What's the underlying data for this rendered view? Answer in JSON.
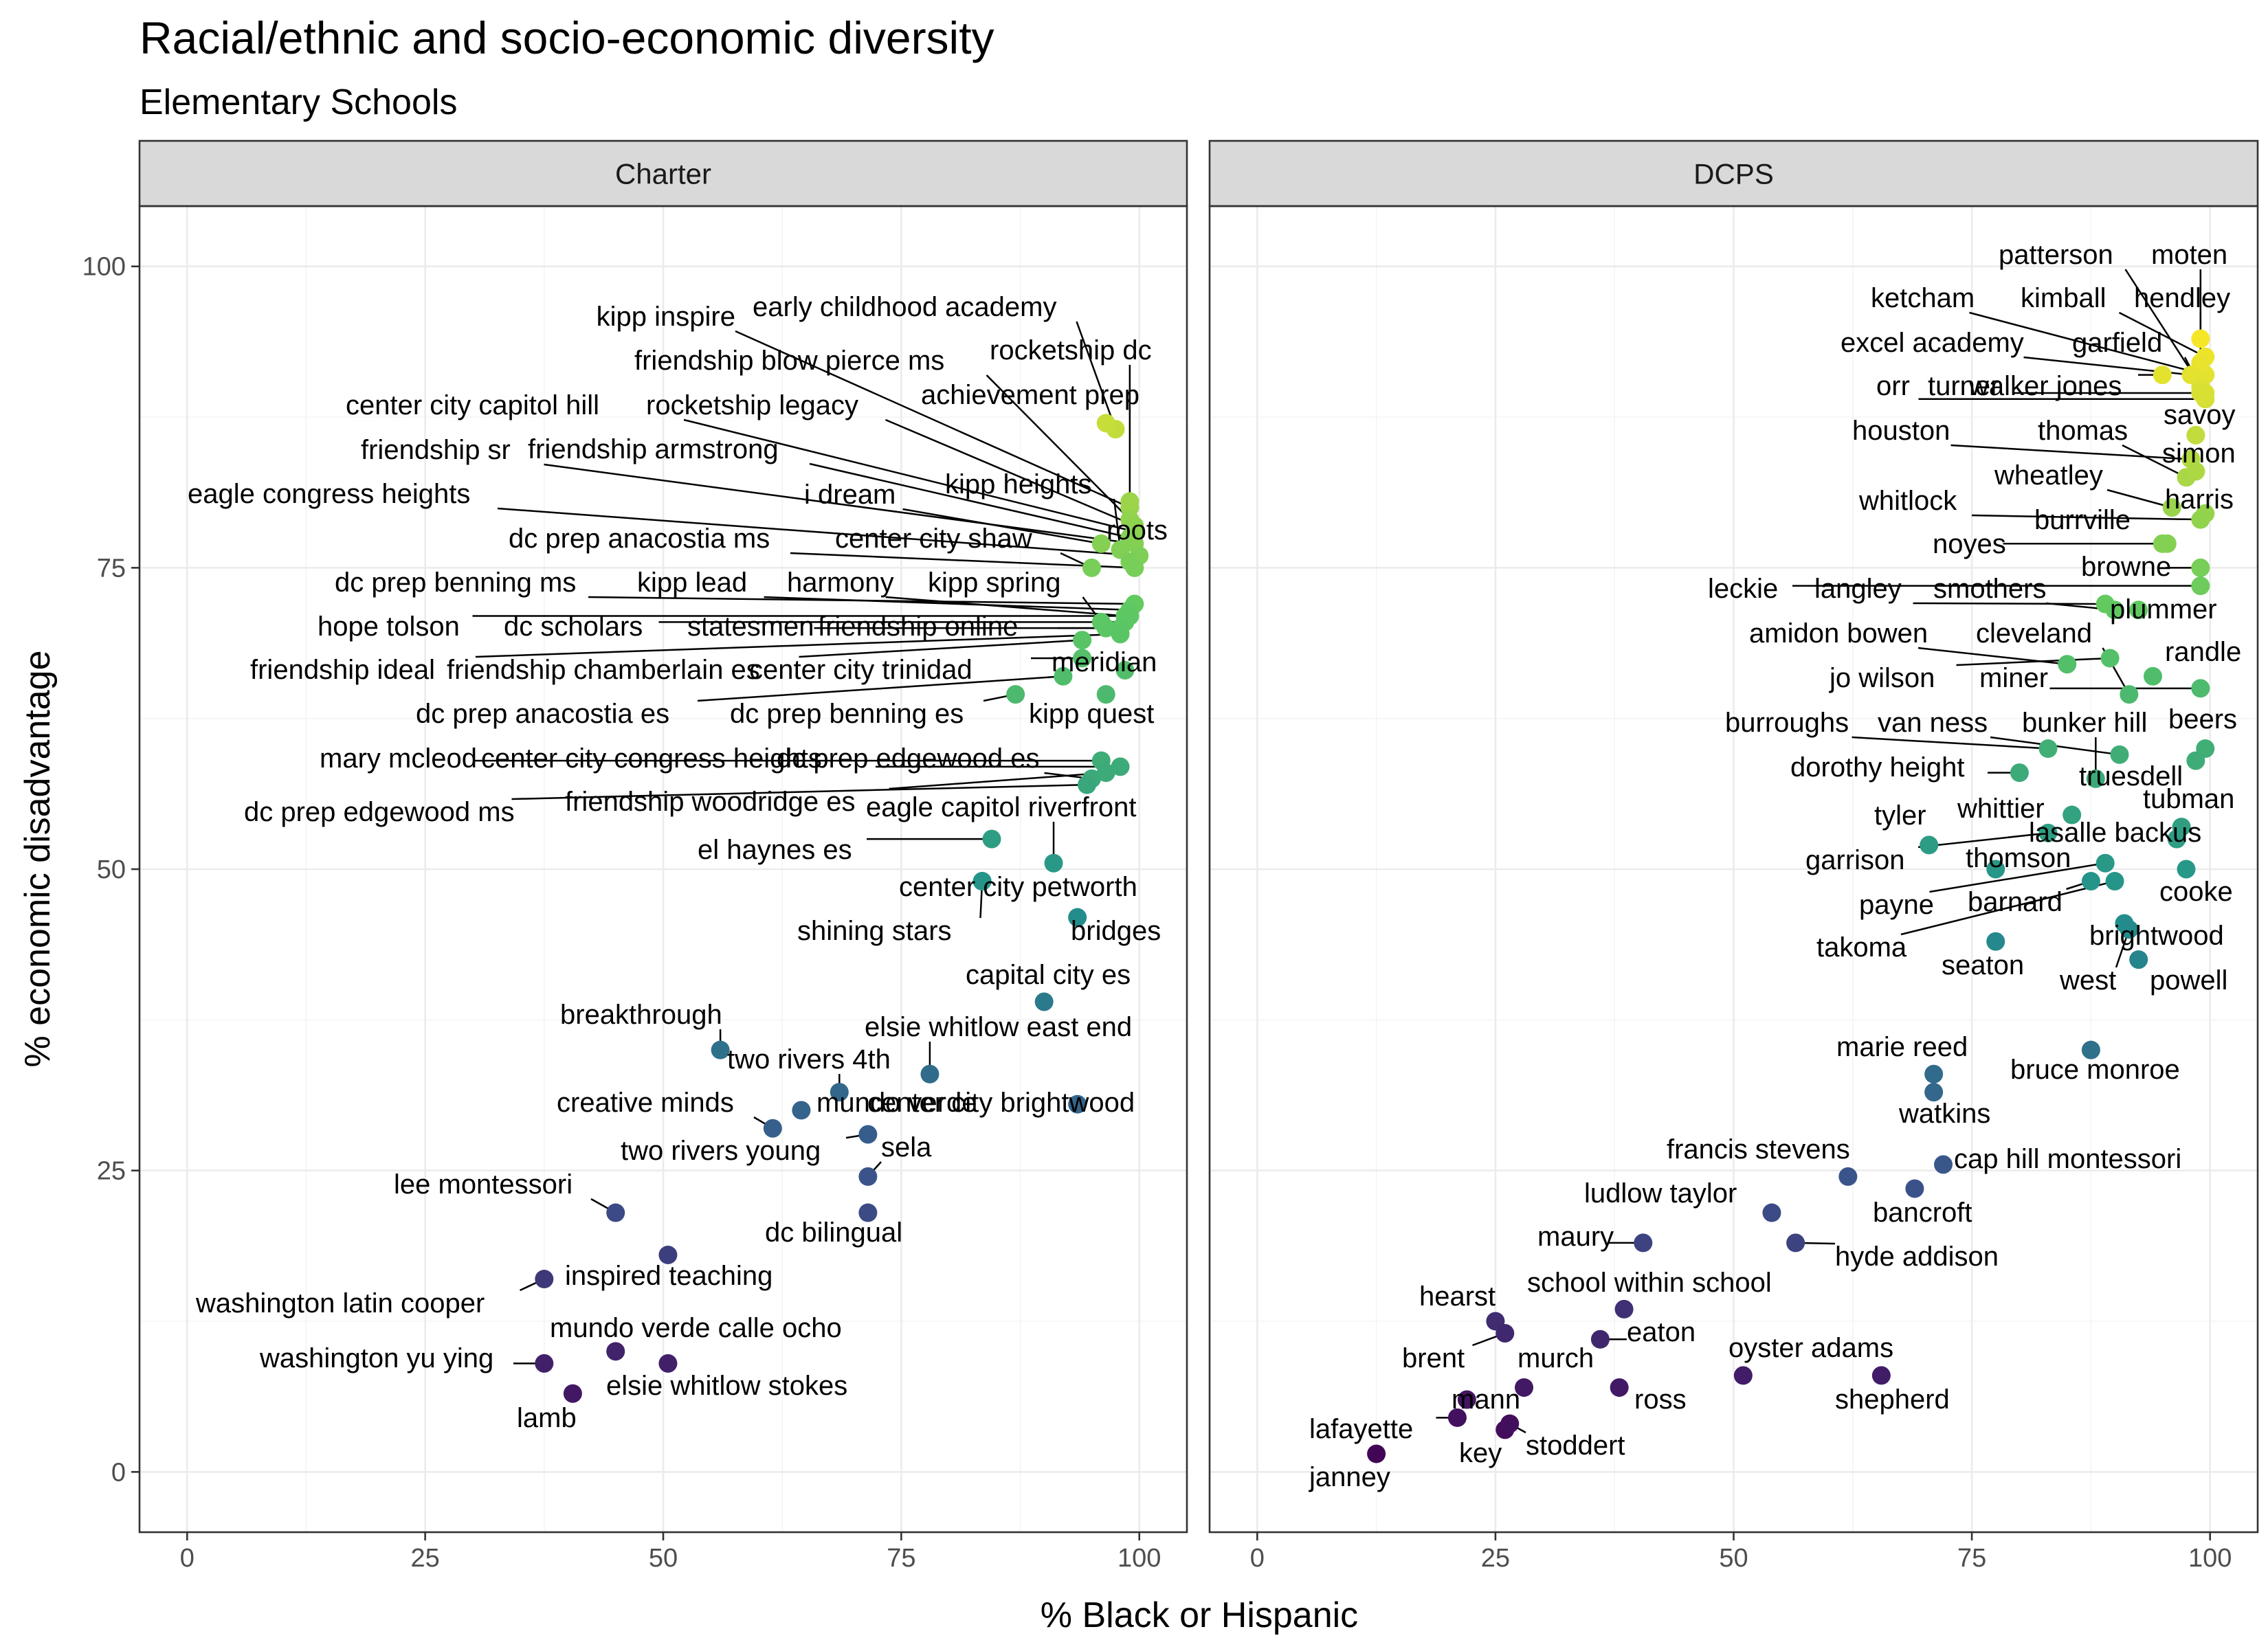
{
  "chart_data": {
    "type": "scatter",
    "title": "Racial/ethnic and socio-economic diversity",
    "subtitle": "Elementary Schools",
    "xlabel": "% Black or Hispanic",
    "ylabel": "% economic disadvantage",
    "xlim": [
      -5,
      105
    ],
    "ylim": [
      -5,
      105
    ],
    "x_ticks": [
      0,
      25,
      50,
      75,
      100
    ],
    "y_ticks": [
      0,
      25,
      50,
      75,
      100
    ],
    "grid": true,
    "color_encoding": "y value (viridis, low = dark purple, high = yellow)",
    "facets": [
      {
        "name": "Charter",
        "points": [
          {
            "label": "kipp inspire",
            "x": 99.0,
            "y": 80.0
          },
          {
            "label": "early childhood academy",
            "x": 97.5,
            "y": 86.5
          },
          {
            "label": "friendship blow pierce ms",
            "x": 99.0,
            "y": 79.0
          },
          {
            "label": "rocketship dc",
            "x": 99.0,
            "y": 80.5
          },
          {
            "label": "achievement prep",
            "x": 96.5,
            "y": 87.0
          },
          {
            "label": "center city capitol hill",
            "x": 99.5,
            "y": 78.0
          },
          {
            "label": "rocketship legacy",
            "x": 99.5,
            "y": 78.5
          },
          {
            "label": "friendship armstrong",
            "x": 99.0,
            "y": 77.5
          },
          {
            "label": "friendship sr",
            "x": 99.5,
            "y": 77.0
          },
          {
            "label": "kipp heights",
            "x": 98.0,
            "y": 76.5
          },
          {
            "label": "i dream",
            "x": 96.0,
            "y": 77.0
          },
          {
            "label": "eagle congress heights",
            "x": 100.0,
            "y": 76.0
          },
          {
            "label": "roots",
            "x": 99.0,
            "y": 75.5
          },
          {
            "label": "dc prep anacostia ms",
            "x": 99.5,
            "y": 75.0
          },
          {
            "label": "center city shaw",
            "x": 95.0,
            "y": 75.0
          },
          {
            "label": "dc prep benning ms",
            "x": 99.5,
            "y": 72.0
          },
          {
            "label": "kipp lead",
            "x": 99.0,
            "y": 71.5
          },
          {
            "label": "harmony",
            "x": 98.5,
            "y": 71.0
          },
          {
            "label": "kipp spring",
            "x": 96.0,
            "y": 70.5
          },
          {
            "label": "hope tolson",
            "x": 99.0,
            "y": 71.0
          },
          {
            "label": "dc scholars",
            "x": 98.5,
            "y": 70.5
          },
          {
            "label": "statesmen",
            "x": 98.0,
            "y": 70.0
          },
          {
            "label": "friendship online",
            "x": 96.5,
            "y": 70.0
          },
          {
            "label": "friendship ideal",
            "x": 98.0,
            "y": 69.5
          },
          {
            "label": "friendship chamberlain es",
            "x": 94.0,
            "y": 69.0
          },
          {
            "label": "center city trinidad",
            "x": 94.0,
            "y": 67.5
          },
          {
            "label": "meridian",
            "x": 98.5,
            "y": 66.5
          },
          {
            "label": "dc prep anacostia es",
            "x": 92.0,
            "y": 66.0
          },
          {
            "label": "dc prep benning es",
            "x": 87.0,
            "y": 64.5
          },
          {
            "label": "kipp quest",
            "x": 96.5,
            "y": 64.5
          },
          {
            "label": "mary mcleod",
            "x": 96.0,
            "y": 59.0
          },
          {
            "label": "center city congress heights",
            "x": 98.0,
            "y": 58.5
          },
          {
            "label": "dc prep edgewood es",
            "x": 95.0,
            "y": 57.5
          },
          {
            "label": "friendship woodridge es",
            "x": 96.5,
            "y": 58.0
          },
          {
            "label": "dc prep edgewood ms",
            "x": 94.5,
            "y": 57.0
          },
          {
            "label": "eagle capitol riverfront",
            "x": 91.0,
            "y": 50.5
          },
          {
            "label": "el haynes es",
            "x": 84.5,
            "y": 52.5
          },
          {
            "label": "center city petworth",
            "x": 83.5,
            "y": 49.0
          },
          {
            "label": "shining stars",
            "x": 83.5,
            "y": 49.0
          },
          {
            "label": "bridges",
            "x": 93.5,
            "y": 46.0
          },
          {
            "label": "capital city es",
            "x": 90.0,
            "y": 39.0
          },
          {
            "label": "breakthrough",
            "x": 56.0,
            "y": 35.0
          },
          {
            "label": "elsie whitlow east end",
            "x": 78.0,
            "y": 33.0
          },
          {
            "label": "two rivers 4th",
            "x": 68.5,
            "y": 31.5
          },
          {
            "label": "creative minds",
            "x": 61.5,
            "y": 28.5
          },
          {
            "label": "mundo verde",
            "x": 64.5,
            "y": 30.0
          },
          {
            "label": "center city brightwood",
            "x": 93.5,
            "y": 30.5
          },
          {
            "label": "two rivers young",
            "x": 71.5,
            "y": 28.0
          },
          {
            "label": "sela",
            "x": 71.5,
            "y": 24.5
          },
          {
            "label": "lee montessori",
            "x": 45.0,
            "y": 21.5
          },
          {
            "label": "dc bilingual",
            "x": 71.5,
            "y": 21.5
          },
          {
            "label": "inspired teaching",
            "x": 50.5,
            "y": 18.0
          },
          {
            "label": "washington latin cooper",
            "x": 37.5,
            "y": 16.0
          },
          {
            "label": "mundo verde calle ocho",
            "x": 45.0,
            "y": 10.0
          },
          {
            "label": "washington yu ying",
            "x": 37.5,
            "y": 9.0
          },
          {
            "label": "elsie whitlow stokes",
            "x": 50.5,
            "y": 9.0
          },
          {
            "label": "lamb",
            "x": 40.5,
            "y": 6.5
          }
        ]
      },
      {
        "name": "DCPS",
        "points": [
          {
            "label": "patterson",
            "x": 99.5,
            "y": 89.5
          },
          {
            "label": "moten",
            "x": 99.0,
            "y": 94.0
          },
          {
            "label": "ketcham",
            "x": 99.5,
            "y": 91.0
          },
          {
            "label": "kimball",
            "x": 99.5,
            "y": 92.5
          },
          {
            "label": "hendley",
            "x": 99.0,
            "y": 92.0
          },
          {
            "label": "excel academy",
            "x": 98.0,
            "y": 91.0
          },
          {
            "label": "garfield",
            "x": 99.0,
            "y": 90.0
          },
          {
            "label": "orr",
            "x": 99.5,
            "y": 89.0
          },
          {
            "label": "turner",
            "x": 99.0,
            "y": 89.5
          },
          {
            "label": "walker jones",
            "x": 95.0,
            "y": 91.0
          },
          {
            "label": "savoy",
            "x": 98.5,
            "y": 86.0
          },
          {
            "label": "houston",
            "x": 98.0,
            "y": 84.0
          },
          {
            "label": "thomas",
            "x": 97.5,
            "y": 82.5
          },
          {
            "label": "simon",
            "x": 98.5,
            "y": 83.0
          },
          {
            "label": "wheatley",
            "x": 96.0,
            "y": 80.0
          },
          {
            "label": "harris",
            "x": 99.5,
            "y": 79.5
          },
          {
            "label": "whitlock",
            "x": 99.0,
            "y": 79.0
          },
          {
            "label": "burrville",
            "x": 95.5,
            "y": 77.0
          },
          {
            "label": "noyes",
            "x": 95.0,
            "y": 77.0
          },
          {
            "label": "browne",
            "x": 99.0,
            "y": 75.0
          },
          {
            "label": "leckie",
            "x": 99.0,
            "y": 73.5
          },
          {
            "label": "langley",
            "x": 89.0,
            "y": 72.0
          },
          {
            "label": "smothers",
            "x": 90.0,
            "y": 71.5
          },
          {
            "label": "plummer",
            "x": 92.5,
            "y": 71.5
          },
          {
            "label": "amidon bowen",
            "x": 85.0,
            "y": 67.0
          },
          {
            "label": "cleveland",
            "x": 91.5,
            "y": 64.5
          },
          {
            "label": "randle",
            "x": 94.0,
            "y": 66.0
          },
          {
            "label": "jo wilson",
            "x": 89.5,
            "y": 67.5
          },
          {
            "label": "miner",
            "x": 99.0,
            "y": 65.0
          },
          {
            "label": "burroughs",
            "x": 83.0,
            "y": 60.0
          },
          {
            "label": "van ness",
            "x": 90.5,
            "y": 59.5
          },
          {
            "label": "bunker hill",
            "x": 88.0,
            "y": 57.5
          },
          {
            "label": "beers",
            "x": 99.5,
            "y": 60.0
          },
          {
            "label": "dorothy height",
            "x": 80.0,
            "y": 58.0
          },
          {
            "label": "truesdell",
            "x": 98.5,
            "y": 59.0
          },
          {
            "label": "tubman",
            "x": 97.0,
            "y": 53.5
          },
          {
            "label": "whittier",
            "x": 85.5,
            "y": 54.5
          },
          {
            "label": "tyler",
            "x": 70.5,
            "y": 52.0
          },
          {
            "label": "lasalle backus",
            "x": 96.5,
            "y": 52.5
          },
          {
            "label": "garrison",
            "x": 83.0,
            "y": 53.0
          },
          {
            "label": "thomson",
            "x": 77.5,
            "y": 50.0
          },
          {
            "label": "cooke",
            "x": 97.5,
            "y": 50.0
          },
          {
            "label": "payne",
            "x": 89.0,
            "y": 50.5
          },
          {
            "label": "barnard",
            "x": 87.5,
            "y": 49.0
          },
          {
            "label": "brightwood",
            "x": 91.0,
            "y": 45.5
          },
          {
            "label": "takoma",
            "x": 90.0,
            "y": 49.0
          },
          {
            "label": "seaton",
            "x": 77.5,
            "y": 44.0
          },
          {
            "label": "west",
            "x": 91.5,
            "y": 45.0
          },
          {
            "label": "powell",
            "x": 92.5,
            "y": 42.5
          },
          {
            "label": "marie reed",
            "x": 71.0,
            "y": 33.0
          },
          {
            "label": "bruce monroe",
            "x": 87.5,
            "y": 35.0
          },
          {
            "label": "watkins",
            "x": 71.0,
            "y": 31.5
          },
          {
            "label": "francis stevens",
            "x": 62.0,
            "y": 24.5
          },
          {
            "label": "cap hill montessori",
            "x": 72.0,
            "y": 25.5
          },
          {
            "label": "ludlow taylor",
            "x": 54.0,
            "y": 21.5
          },
          {
            "label": "bancroft",
            "x": 69.0,
            "y": 23.5
          },
          {
            "label": "maury",
            "x": 40.5,
            "y": 19.0
          },
          {
            "label": "hyde addison",
            "x": 56.5,
            "y": 19.0
          },
          {
            "label": "school within school",
            "x": 38.5,
            "y": 13.5
          },
          {
            "label": "hearst",
            "x": 25.0,
            "y": 12.5
          },
          {
            "label": "eaton",
            "x": 36.0,
            "y": 11.0
          },
          {
            "label": "brent",
            "x": 26.0,
            "y": 11.5
          },
          {
            "label": "murch",
            "x": 28.0,
            "y": 7.0
          },
          {
            "label": "oyster adams",
            "x": 51.0,
            "y": 8.0
          },
          {
            "label": "shepherd",
            "x": 65.5,
            "y": 8.0
          },
          {
            "label": "mann",
            "x": 22.0,
            "y": 6.0
          },
          {
            "label": "ross",
            "x": 38.0,
            "y": 7.0
          },
          {
            "label": "lafayette",
            "x": 21.0,
            "y": 4.5
          },
          {
            "label": "key",
            "x": 26.0,
            "y": 3.5
          },
          {
            "label": "stoddert",
            "x": 26.5,
            "y": 4.0
          },
          {
            "label": "janney",
            "x": 12.5,
            "y": 1.5
          }
        ]
      }
    ]
  }
}
